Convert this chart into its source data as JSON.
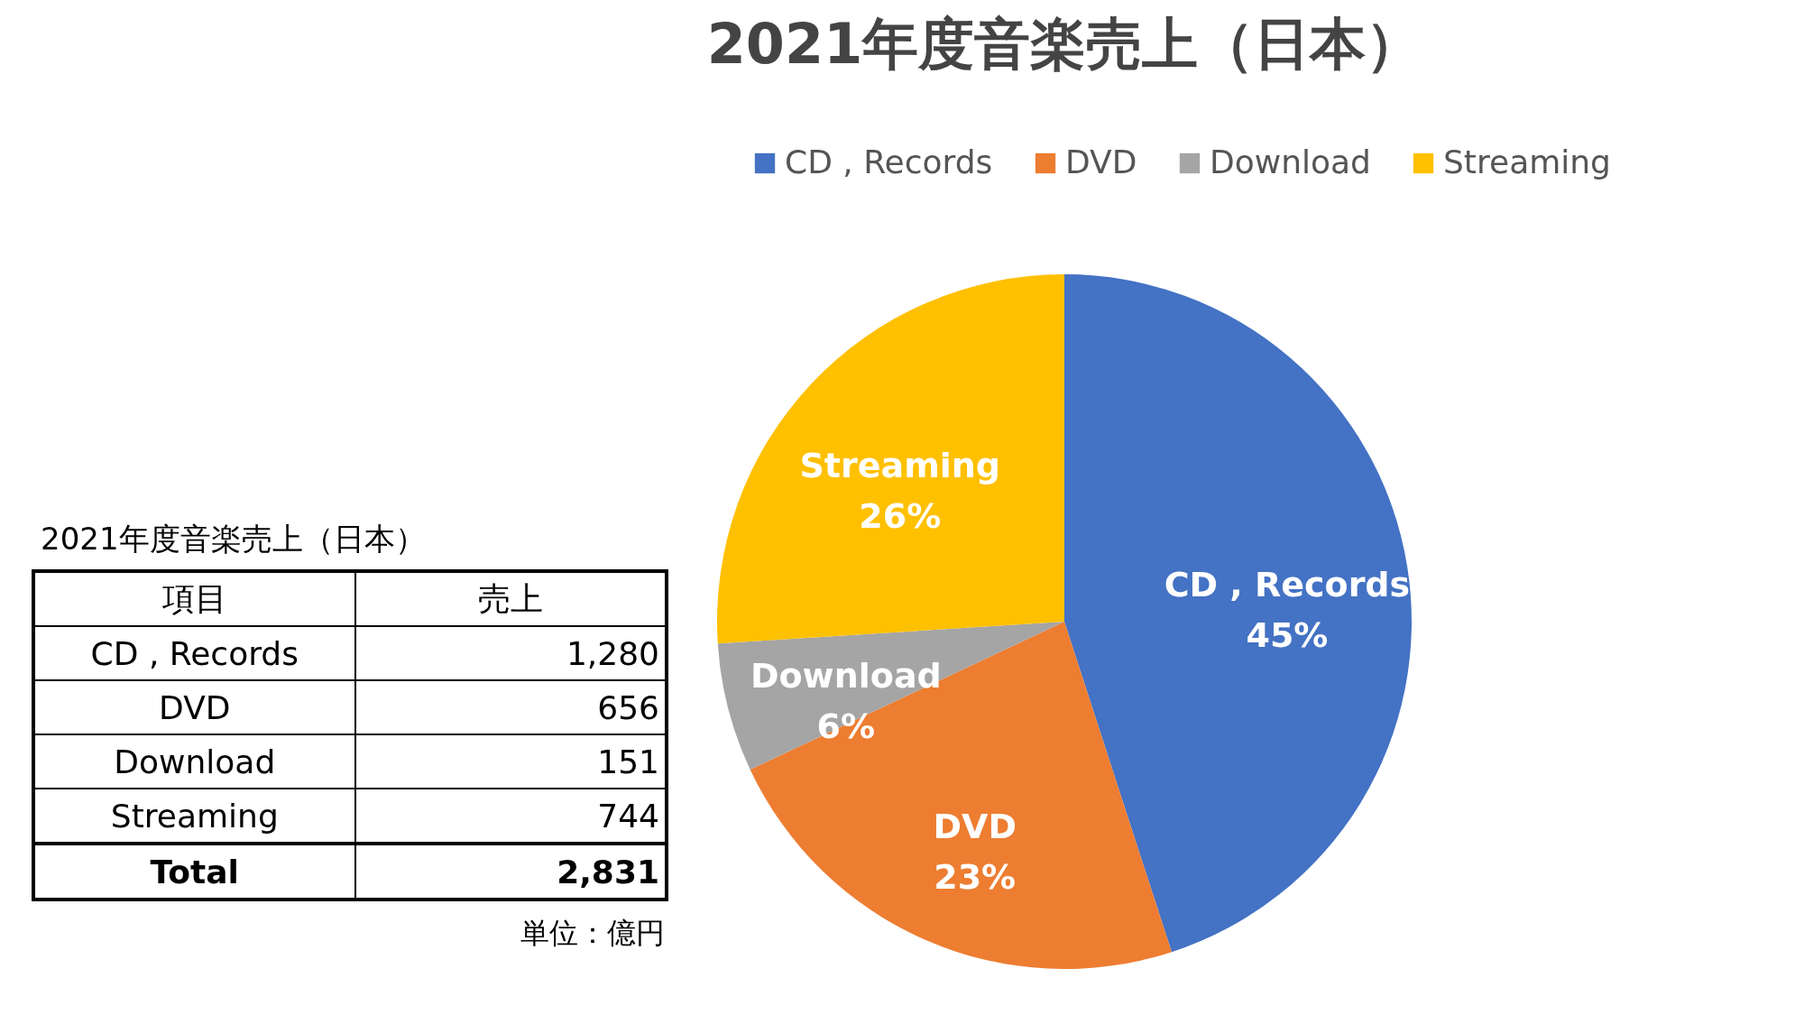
{
  "chart_data": [
    {
      "type": "pie",
      "title": "2021年度音楽売上（日本）",
      "categories": [
        "CD , Records",
        "DVD",
        "Download",
        "Streaming"
      ],
      "values": [
        45,
        23,
        6,
        26
      ],
      "colors": [
        "#4472c4",
        "#ed7d31",
        "#a5a5a5",
        "#ffc000"
      ],
      "value_labels": [
        "45%",
        "23%",
        "6%",
        "26%"
      ],
      "legend": "top"
    },
    {
      "type": "other",
      "title": "2021年度音楽売上（日本）",
      "categories": [
        "CD , Records",
        "DVD",
        "Download",
        "Streaming",
        "Total"
      ],
      "value_labels": [
        "1,280",
        "656",
        "151",
        "744",
        "2,831"
      ],
      "annotations": [
        "項目",
        "売上",
        "単位：億円"
      ]
    }
  ]
}
